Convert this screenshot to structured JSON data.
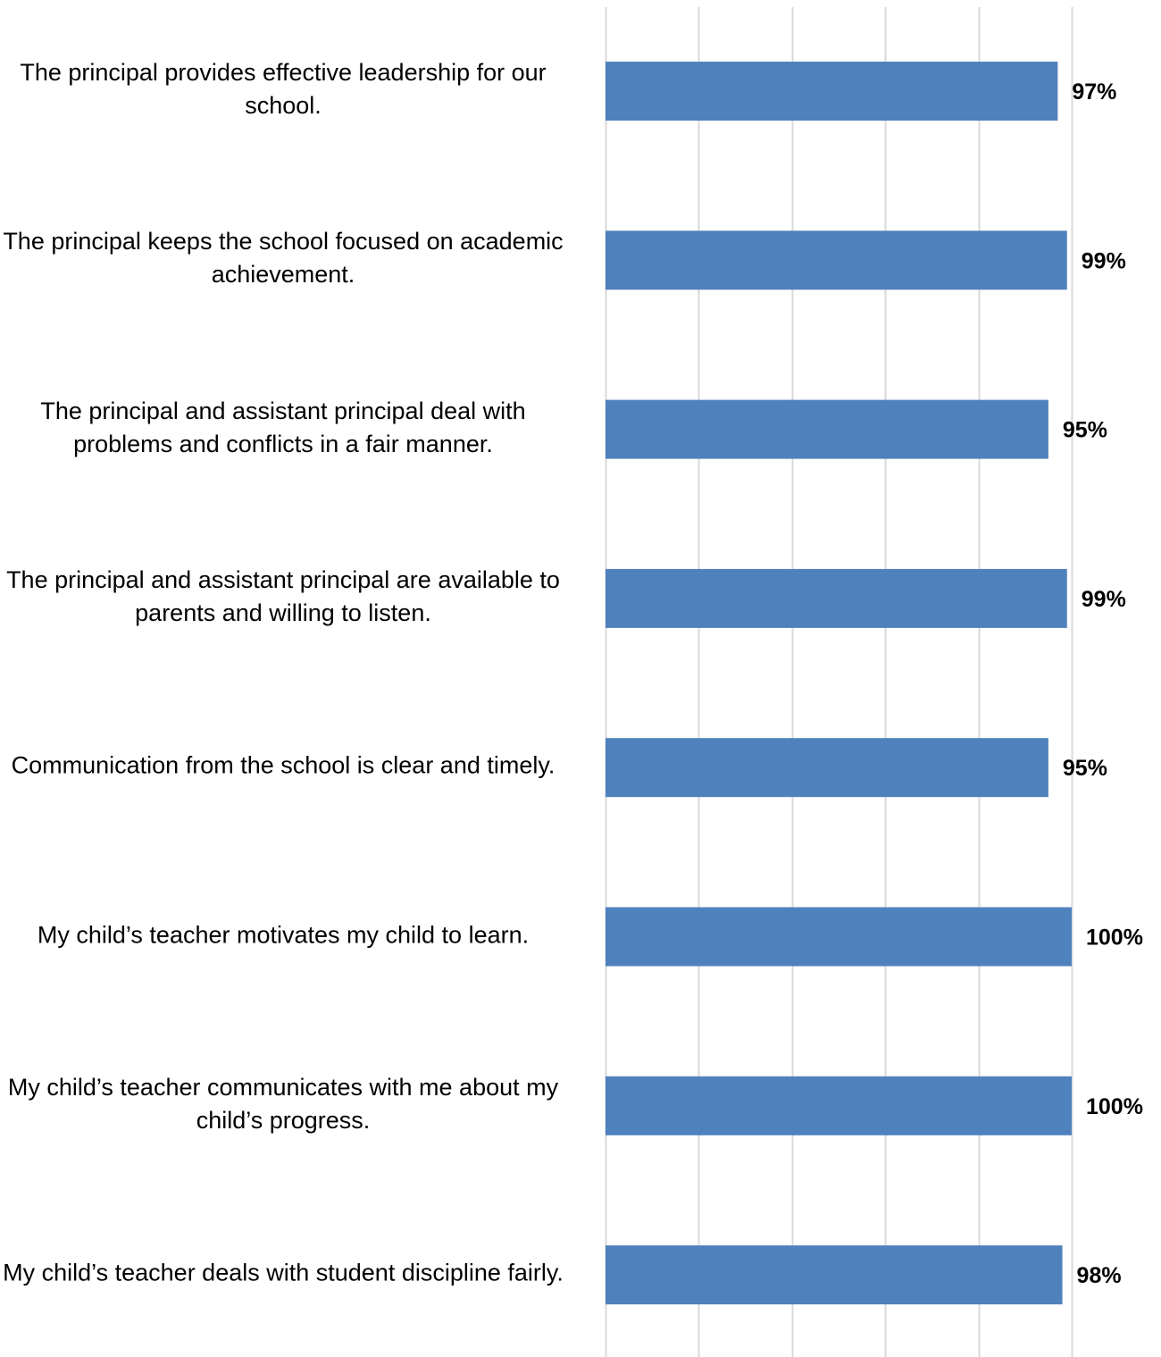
{
  "chart_data": {
    "type": "bar",
    "orientation": "horizontal",
    "categories": [
      "The principal provides effective leadership for our school.",
      "The principal keeps the school focused on academic achievement.",
      "The principal and assistant principal deal with problems and conflicts in a fair manner.",
      "The principal and assistant principal are available to parents and willing to listen.",
      "Communication from the school is clear and timely.",
      "My child’s teacher motivates my child to learn.",
      "My child’s teacher communicates with me about my child’s progress.",
      "My child’s teacher deals with student discipline fairly."
    ],
    "values": [
      97,
      99,
      95,
      99,
      95,
      100,
      100,
      98
    ],
    "data_labels": [
      "97%",
      "99%",
      "95%",
      "99%",
      "95%",
      "100%",
      "100%",
      "98%"
    ],
    "xlim": [
      0,
      100
    ],
    "grid": true,
    "bar_color": "#4F81BD",
    "grid_color": "#D9D9D9"
  }
}
